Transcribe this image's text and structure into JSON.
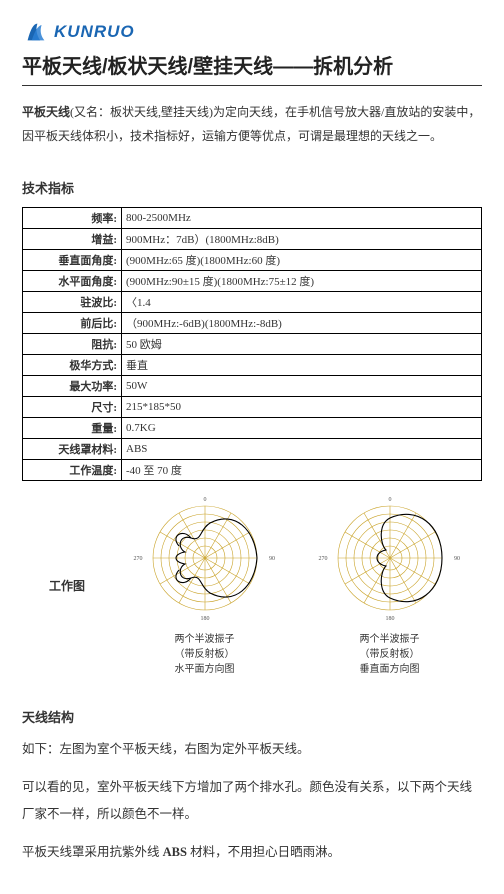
{
  "logo": {
    "text": "KUNRUO",
    "icon_name": "company-logo-icon"
  },
  "title": "平板天线/板状天线/壁挂天线——拆机分析",
  "intro_bold": "平板天线",
  "intro_rest": "(又名：板状天线,壁挂天线)为定向天线，在手机信号放大器/直放站的安装中，因平板天线体积小，技术指标好，运输方便等优点，可谓是最理想的天线之一。",
  "spec_header": "技术指标",
  "spec": {
    "rows": [
      {
        "label": "频率:",
        "value": "800-2500MHz"
      },
      {
        "label": "增益:",
        "value": "900MHz：7dB）(1800MHz:8dB)"
      },
      {
        "label": "垂直面角度:",
        "value": "(900MHz:65 度)(1800MHz:60 度)"
      },
      {
        "label": "水平面角度:",
        "value": "(900MHz:90±15 度)(1800MHz:75±12 度)"
      },
      {
        "label": "驻波比:",
        "value": "〈1.4"
      },
      {
        "label": "前后比:",
        "value": "（900MHz:-6dB)(1800MHz:-8dB)"
      },
      {
        "label": "阻抗:",
        "value": "50 欧姆"
      },
      {
        "label": "极华方式:",
        "value": "垂直"
      },
      {
        "label": "最大功率:",
        "value": "50W"
      },
      {
        "label": "尺寸:",
        "value": "215*185*50"
      },
      {
        "label": "重量:",
        "value": "0.7KG"
      },
      {
        "label": "天线罩材料:",
        "value": "ABS"
      },
      {
        "label": "工作温度:",
        "value": "-40 至 70 度"
      }
    ]
  },
  "diagram": {
    "label": "工作图",
    "fig1": {
      "caption_line1": "两个半波振子",
      "caption_line2": "（带反射板）",
      "caption_line3": "水平面方向图"
    },
    "fig2": {
      "caption_line1": "两个半波振子",
      "caption_line2": "（带反射板）",
      "caption_line3": "垂直面方向图"
    },
    "colors": {
      "grid": "#c9a227",
      "trace": "#000"
    }
  },
  "structure_header": "天线结构",
  "body1": "如下：左图为室个平板天线，右图为定外平板天线。",
  "body2": "可以看的见，室外平板天线下方增加了两个排水孔。颜色没有关系，以下两个天线厂家不一样，所以颜色不一样。",
  "body3_pre": "平板天线罩采用抗紫外线 ",
  "body3_bold": "ABS",
  "body3_post": " 材料，不用担心日晒雨淋。"
}
